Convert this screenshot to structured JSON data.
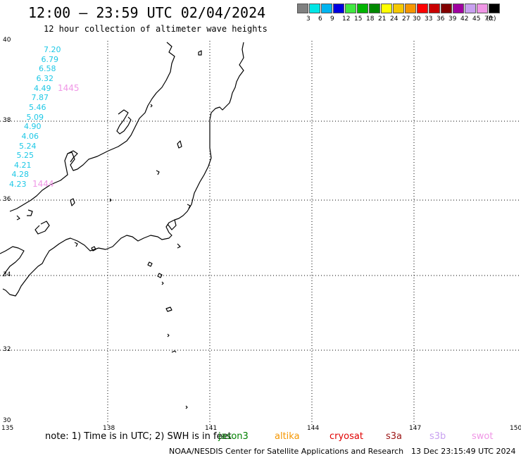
{
  "title": "12:00 — 23:59 UTC 02/04/2024",
  "subtitle": "12 hour collection of altimeter wave heights",
  "legend": {
    "colors": [
      "#808080",
      "#00e5e5",
      "#00b4f0",
      "#0000e0",
      "#40e840",
      "#00b400",
      "#008800",
      "#ffff00",
      "#f5c800",
      "#f59600",
      "#ff0000",
      "#c80000",
      "#820000",
      "#a000a0",
      "#c8a0f0",
      "#f096e6",
      "#000000"
    ],
    "labels": [
      "3",
      "6",
      "9",
      "12",
      "15",
      "18",
      "21",
      "24",
      "27",
      "30",
      "33",
      "36",
      "39",
      "42",
      "45",
      "70",
      "(ft)"
    ]
  },
  "axes": {
    "lat_labels": [
      "40",
      "38",
      "36",
      "34",
      "32",
      "30"
    ],
    "lon_labels": [
      "135",
      "138",
      "141",
      "144",
      "147",
      "150"
    ]
  },
  "map": {
    "lat_range": [
      30,
      40
    ],
    "lon_range": [
      135,
      150
    ]
  },
  "wave_heights": [
    {
      "value": "7.20",
      "lat": 39.78
    },
    {
      "value": "6.79",
      "lat": 39.53
    },
    {
      "value": "6.58",
      "lat": 39.28
    },
    {
      "value": "6.32",
      "lat": 39.03
    },
    {
      "value": "4.49",
      "lat": 38.78
    },
    {
      "value": "7.87",
      "lat": 38.53
    },
    {
      "value": "5.46",
      "lat": 38.28
    },
    {
      "value": "5.09",
      "lat": 38.03
    },
    {
      "value": "4.90",
      "lat": 37.78
    },
    {
      "value": "4.06",
      "lat": 37.53
    },
    {
      "value": "5.24",
      "lat": 37.28
    },
    {
      "value": "5.25",
      "lat": 37.03
    },
    {
      "value": "4.21",
      "lat": 36.78
    },
    {
      "value": "4.28",
      "lat": 36.53
    },
    {
      "value": "4.23",
      "lat": 36.28
    }
  ],
  "wave_color": "#1ec8e6",
  "pass_color": "#f096e6",
  "pass_times": [
    {
      "value": "1445",
      "lat": 38.78
    },
    {
      "value": "1444",
      "lat": 36.28
    }
  ],
  "note": "note: 1) Time is in UTC; 2) SWH is in feet",
  "satellites": [
    {
      "name": "jason3",
      "color": "#008000"
    },
    {
      "name": "altika",
      "color": "#f59600"
    },
    {
      "name": "cryosat",
      "color": "#e00000"
    },
    {
      "name": "s3a",
      "color": "#9b1414"
    },
    {
      "name": "s3b",
      "color": "#c8a0f0"
    },
    {
      "name": "swot",
      "color": "#f096e6"
    }
  ],
  "footer": "NOAA/NESDIS Center for Satellite Applications and Research",
  "footer_time": "13 Dec 23:15:49 UTC 2024"
}
